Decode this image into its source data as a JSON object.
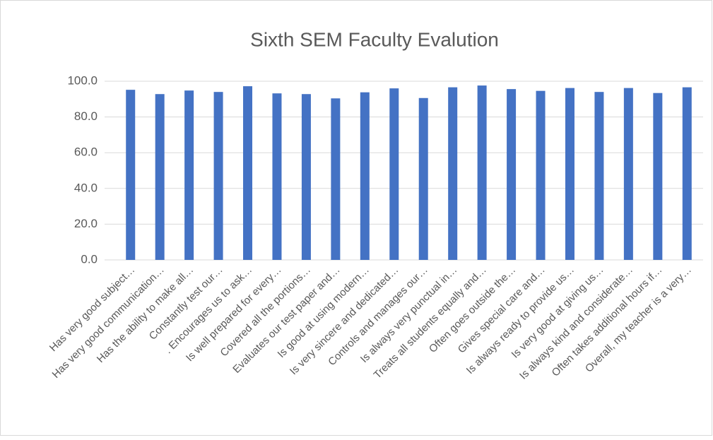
{
  "chart_data": {
    "type": "bar",
    "title": "Sixth SEM Faculty Evalution",
    "categories": [
      "Has very good subject…",
      "Has very good communication…",
      "Has the ability to make all…",
      "Constantly test our…",
      ". Encourages us to ask…",
      "Is well prepared for every…",
      "Covered all the portions…",
      "Evaluates our test paper and…",
      "Is good at using modern…",
      "Is very sincere and dedicated…",
      "Controls and manages our…",
      "Is always very punctual in…",
      "Treats all students equally and…",
      "Often goes outside the…",
      "Gives special care and…",
      "Is always ready to provide us…",
      "Is very good at giving us…",
      "Is always kind and considerate…",
      "Often takes additional hours if…",
      "Overall, my teacher is a very…"
    ],
    "values": [
      95.2,
      92.8,
      94.8,
      94.0,
      97.2,
      93.2,
      92.8,
      90.4,
      93.8,
      96.0,
      90.6,
      96.6,
      97.6,
      95.6,
      94.6,
      96.2,
      94.0,
      96.2,
      93.4,
      96.6
    ],
    "color": "#4472c4",
    "ylim": [
      0,
      100
    ],
    "yticks": [
      {
        "value": 0,
        "label": "0.0"
      },
      {
        "value": 20,
        "label": "20.0"
      },
      {
        "value": 40,
        "label": "40.0"
      },
      {
        "value": 60,
        "label": "60.0"
      },
      {
        "value": 80,
        "label": "80.0"
      },
      {
        "value": 100,
        "label": "100.0"
      }
    ],
    "grid": true
  }
}
